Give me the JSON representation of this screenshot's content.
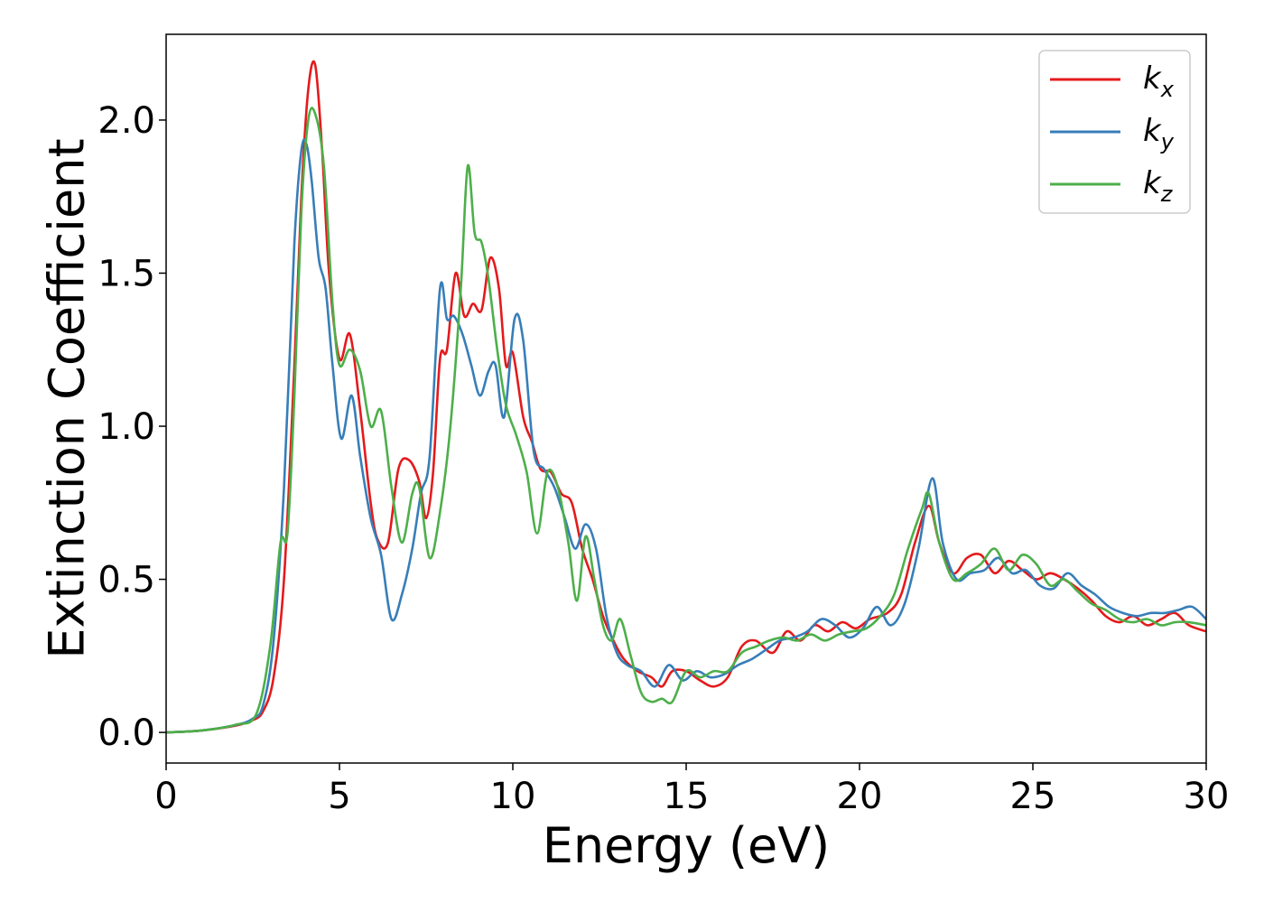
{
  "chart_data": {
    "type": "line",
    "title": "",
    "xlabel": "Energy (eV)",
    "ylabel": "Extinction Coefficient",
    "xlim": [
      0,
      30
    ],
    "ylim": [
      -0.1,
      2.28
    ],
    "xticks": [
      0,
      5,
      10,
      15,
      20,
      25,
      30
    ],
    "xtick_labels": [
      "0",
      "5",
      "10",
      "15",
      "20",
      "25",
      "30"
    ],
    "yticks": [
      0.0,
      0.5,
      1.0,
      1.5,
      2.0
    ],
    "ytick_labels": [
      "0.0",
      "0.5",
      "1.0",
      "1.5",
      "2.0"
    ],
    "grid": false,
    "legend": {
      "placement": "top-right",
      "entries": [
        {
          "base": "k",
          "sub": "x"
        },
        {
          "base": "k",
          "sub": "y"
        },
        {
          "base": "k",
          "sub": "z"
        }
      ]
    },
    "series": [
      {
        "name": "k_x",
        "color": "#e41a1c",
        "points": [
          [
            0,
            0
          ],
          [
            1,
            0.006
          ],
          [
            2,
            0.022
          ],
          [
            2.5,
            0.04
          ],
          [
            2.8,
            0.07
          ],
          [
            3.1,
            0.18
          ],
          [
            3.4,
            0.5
          ],
          [
            3.7,
            1.2
          ],
          [
            3.9,
            1.75
          ],
          [
            4.1,
            2.1
          ],
          [
            4.3,
            2.18
          ],
          [
            4.5,
            1.9
          ],
          [
            4.7,
            1.5
          ],
          [
            5.0,
            1.22
          ],
          [
            5.3,
            1.3
          ],
          [
            5.6,
            1.05
          ],
          [
            5.9,
            0.75
          ],
          [
            6.1,
            0.63
          ],
          [
            6.4,
            0.62
          ],
          [
            6.7,
            0.86
          ],
          [
            7.0,
            0.89
          ],
          [
            7.3,
            0.82
          ],
          [
            7.5,
            0.7
          ],
          [
            7.7,
            0.85
          ],
          [
            7.9,
            1.22
          ],
          [
            8.1,
            1.25
          ],
          [
            8.35,
            1.5
          ],
          [
            8.6,
            1.36
          ],
          [
            8.85,
            1.4
          ],
          [
            9.1,
            1.38
          ],
          [
            9.35,
            1.55
          ],
          [
            9.6,
            1.45
          ],
          [
            9.8,
            1.2
          ],
          [
            10.0,
            1.24
          ],
          [
            10.3,
            1.03
          ],
          [
            10.55,
            0.95
          ],
          [
            10.8,
            0.86
          ],
          [
            11.1,
            0.85
          ],
          [
            11.4,
            0.78
          ],
          [
            11.7,
            0.75
          ],
          [
            12.0,
            0.6
          ],
          [
            12.3,
            0.5
          ],
          [
            12.6,
            0.38
          ],
          [
            12.9,
            0.3
          ],
          [
            13.2,
            0.24
          ],
          [
            13.6,
            0.2
          ],
          [
            14.0,
            0.18
          ],
          [
            14.3,
            0.15
          ],
          [
            14.6,
            0.2
          ],
          [
            15.0,
            0.2
          ],
          [
            15.4,
            0.17
          ],
          [
            15.8,
            0.15
          ],
          [
            16.2,
            0.18
          ],
          [
            16.6,
            0.28
          ],
          [
            17.0,
            0.3
          ],
          [
            17.5,
            0.26
          ],
          [
            17.9,
            0.33
          ],
          [
            18.3,
            0.3
          ],
          [
            18.7,
            0.35
          ],
          [
            19.1,
            0.33
          ],
          [
            19.5,
            0.36
          ],
          [
            19.9,
            0.34
          ],
          [
            20.3,
            0.37
          ],
          [
            20.8,
            0.39
          ],
          [
            21.2,
            0.45
          ],
          [
            21.6,
            0.62
          ],
          [
            22.0,
            0.74
          ],
          [
            22.3,
            0.62
          ],
          [
            22.7,
            0.52
          ],
          [
            23.1,
            0.57
          ],
          [
            23.5,
            0.58
          ],
          [
            23.9,
            0.52
          ],
          [
            24.3,
            0.56
          ],
          [
            24.7,
            0.53
          ],
          [
            25.1,
            0.5
          ],
          [
            25.5,
            0.52
          ],
          [
            25.9,
            0.5
          ],
          [
            26.3,
            0.47
          ],
          [
            26.7,
            0.43
          ],
          [
            27.1,
            0.38
          ],
          [
            27.5,
            0.36
          ],
          [
            27.9,
            0.38
          ],
          [
            28.3,
            0.35
          ],
          [
            28.7,
            0.37
          ],
          [
            29.1,
            0.39
          ],
          [
            29.5,
            0.35
          ],
          [
            30.0,
            0.33
          ]
        ]
      },
      {
        "name": "k_y",
        "color": "#377eb8",
        "points": [
          [
            0,
            0
          ],
          [
            1,
            0.006
          ],
          [
            2,
            0.024
          ],
          [
            2.5,
            0.045
          ],
          [
            2.8,
            0.09
          ],
          [
            3.1,
            0.3
          ],
          [
            3.4,
            0.8
          ],
          [
            3.7,
            1.6
          ],
          [
            3.9,
            1.9
          ],
          [
            4.05,
            1.92
          ],
          [
            4.2,
            1.8
          ],
          [
            4.4,
            1.55
          ],
          [
            4.6,
            1.45
          ],
          [
            4.8,
            1.2
          ],
          [
            5.05,
            0.96
          ],
          [
            5.35,
            1.1
          ],
          [
            5.6,
            0.9
          ],
          [
            5.9,
            0.7
          ],
          [
            6.2,
            0.58
          ],
          [
            6.5,
            0.37
          ],
          [
            6.8,
            0.45
          ],
          [
            7.1,
            0.6
          ],
          [
            7.35,
            0.78
          ],
          [
            7.6,
            0.9
          ],
          [
            7.9,
            1.45
          ],
          [
            8.1,
            1.35
          ],
          [
            8.3,
            1.36
          ],
          [
            8.55,
            1.3
          ],
          [
            8.8,
            1.2
          ],
          [
            9.05,
            1.1
          ],
          [
            9.3,
            1.18
          ],
          [
            9.5,
            1.2
          ],
          [
            9.75,
            1.03
          ],
          [
            10.05,
            1.35
          ],
          [
            10.3,
            1.28
          ],
          [
            10.6,
            0.92
          ],
          [
            10.9,
            0.86
          ],
          [
            11.2,
            0.8
          ],
          [
            11.5,
            0.7
          ],
          [
            11.8,
            0.6
          ],
          [
            12.1,
            0.68
          ],
          [
            12.4,
            0.6
          ],
          [
            12.7,
            0.38
          ],
          [
            13.0,
            0.26
          ],
          [
            13.3,
            0.22
          ],
          [
            13.7,
            0.2
          ],
          [
            14.1,
            0.15
          ],
          [
            14.5,
            0.22
          ],
          [
            14.9,
            0.17
          ],
          [
            15.3,
            0.2
          ],
          [
            15.7,
            0.18
          ],
          [
            16.1,
            0.19
          ],
          [
            16.5,
            0.22
          ],
          [
            16.9,
            0.24
          ],
          [
            17.3,
            0.27
          ],
          [
            17.7,
            0.3
          ],
          [
            18.1,
            0.31
          ],
          [
            18.5,
            0.33
          ],
          [
            18.9,
            0.37
          ],
          [
            19.3,
            0.35
          ],
          [
            19.7,
            0.31
          ],
          [
            20.1,
            0.34
          ],
          [
            20.5,
            0.41
          ],
          [
            20.9,
            0.35
          ],
          [
            21.3,
            0.42
          ],
          [
            21.7,
            0.6
          ],
          [
            22.1,
            0.83
          ],
          [
            22.4,
            0.62
          ],
          [
            22.8,
            0.5
          ],
          [
            23.2,
            0.52
          ],
          [
            23.6,
            0.53
          ],
          [
            24.0,
            0.57
          ],
          [
            24.4,
            0.52
          ],
          [
            24.8,
            0.53
          ],
          [
            25.2,
            0.48
          ],
          [
            25.6,
            0.47
          ],
          [
            26.0,
            0.52
          ],
          [
            26.4,
            0.48
          ],
          [
            26.8,
            0.45
          ],
          [
            27.2,
            0.41
          ],
          [
            27.6,
            0.39
          ],
          [
            28.0,
            0.38
          ],
          [
            28.4,
            0.39
          ],
          [
            28.8,
            0.39
          ],
          [
            29.2,
            0.4
          ],
          [
            29.6,
            0.41
          ],
          [
            30.0,
            0.37
          ]
        ]
      },
      {
        "name": "k_z",
        "color": "#4daf4a",
        "points": [
          [
            0,
            0
          ],
          [
            1,
            0.006
          ],
          [
            2,
            0.025
          ],
          [
            2.6,
            0.06
          ],
          [
            3.0,
            0.28
          ],
          [
            3.3,
            0.62
          ],
          [
            3.5,
            0.65
          ],
          [
            3.7,
            1.1
          ],
          [
            3.9,
            1.7
          ],
          [
            4.1,
            2.0
          ],
          [
            4.3,
            2.02
          ],
          [
            4.55,
            1.85
          ],
          [
            4.8,
            1.4
          ],
          [
            5.0,
            1.2
          ],
          [
            5.3,
            1.25
          ],
          [
            5.6,
            1.18
          ],
          [
            5.9,
            1.0
          ],
          [
            6.2,
            1.05
          ],
          [
            6.5,
            0.8
          ],
          [
            6.8,
            0.62
          ],
          [
            7.1,
            0.78
          ],
          [
            7.3,
            0.8
          ],
          [
            7.6,
            0.57
          ],
          [
            7.9,
            0.72
          ],
          [
            8.2,
            1.0
          ],
          [
            8.5,
            1.45
          ],
          [
            8.7,
            1.85
          ],
          [
            8.9,
            1.63
          ],
          [
            9.1,
            1.6
          ],
          [
            9.3,
            1.48
          ],
          [
            9.55,
            1.25
          ],
          [
            9.8,
            1.07
          ],
          [
            10.1,
            0.97
          ],
          [
            10.4,
            0.85
          ],
          [
            10.7,
            0.65
          ],
          [
            11.0,
            0.85
          ],
          [
            11.3,
            0.8
          ],
          [
            11.6,
            0.62
          ],
          [
            11.85,
            0.43
          ],
          [
            12.1,
            0.64
          ],
          [
            12.35,
            0.5
          ],
          [
            12.6,
            0.35
          ],
          [
            12.85,
            0.3
          ],
          [
            13.1,
            0.37
          ],
          [
            13.4,
            0.25
          ],
          [
            13.7,
            0.13
          ],
          [
            14.0,
            0.1
          ],
          [
            14.3,
            0.11
          ],
          [
            14.6,
            0.1
          ],
          [
            15.0,
            0.2
          ],
          [
            15.4,
            0.18
          ],
          [
            15.8,
            0.2
          ],
          [
            16.2,
            0.2
          ],
          [
            16.6,
            0.26
          ],
          [
            17.0,
            0.28
          ],
          [
            17.4,
            0.3
          ],
          [
            17.8,
            0.31
          ],
          [
            18.2,
            0.3
          ],
          [
            18.6,
            0.32
          ],
          [
            19.0,
            0.3
          ],
          [
            19.4,
            0.32
          ],
          [
            19.8,
            0.33
          ],
          [
            20.2,
            0.34
          ],
          [
            20.6,
            0.38
          ],
          [
            21.0,
            0.45
          ],
          [
            21.4,
            0.6
          ],
          [
            21.8,
            0.73
          ],
          [
            22.0,
            0.78
          ],
          [
            22.3,
            0.62
          ],
          [
            22.7,
            0.5
          ],
          [
            23.1,
            0.52
          ],
          [
            23.5,
            0.55
          ],
          [
            23.9,
            0.6
          ],
          [
            24.3,
            0.53
          ],
          [
            24.7,
            0.58
          ],
          [
            25.1,
            0.55
          ],
          [
            25.5,
            0.48
          ],
          [
            25.9,
            0.5
          ],
          [
            26.3,
            0.46
          ],
          [
            26.7,
            0.42
          ],
          [
            27.1,
            0.4
          ],
          [
            27.5,
            0.37
          ],
          [
            27.9,
            0.36
          ],
          [
            28.3,
            0.37
          ],
          [
            28.7,
            0.35
          ],
          [
            29.1,
            0.36
          ],
          [
            29.5,
            0.36
          ],
          [
            30.0,
            0.35
          ]
        ]
      }
    ]
  }
}
